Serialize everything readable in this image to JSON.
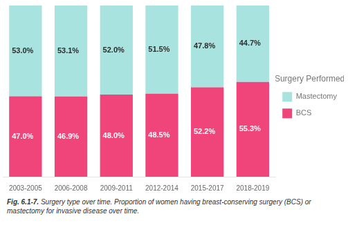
{
  "chart_data": {
    "type": "bar",
    "stacked": true,
    "categories": [
      "2003-2005",
      "2006-2008",
      "2009-2011",
      "2012-2014",
      "2015-2017",
      "2018-2019"
    ],
    "series": [
      {
        "name": "BCS",
        "color": "#f0457a",
        "values": [
          47.0,
          46.9,
          48.0,
          48.5,
          52.2,
          55.3
        ],
        "value_labels": [
          "47.0%",
          "46.9%",
          "48.0%",
          "48.5%",
          "52.2%",
          "55.3%"
        ]
      },
      {
        "name": "Mastectomy",
        "color": "#a8e3df",
        "values": [
          53.0,
          53.1,
          52.0,
          51.5,
          47.8,
          44.7
        ],
        "value_labels": [
          "53.0%",
          "53.1%",
          "52.0%",
          "51.5%",
          "47.8%",
          "44.7%"
        ]
      }
    ],
    "ylim": [
      0,
      100
    ],
    "legend_title": "Surgery Performed",
    "legend": "right",
    "grid": false,
    "data_labels": true,
    "tick_labels": "x",
    "annotations": [
      "Fig. 6.1-7.",
      "Surgery type over time. Proportion of women having breast-conserving surgery (BCS) or\nmastectomy for invasive disease over time."
    ]
  }
}
